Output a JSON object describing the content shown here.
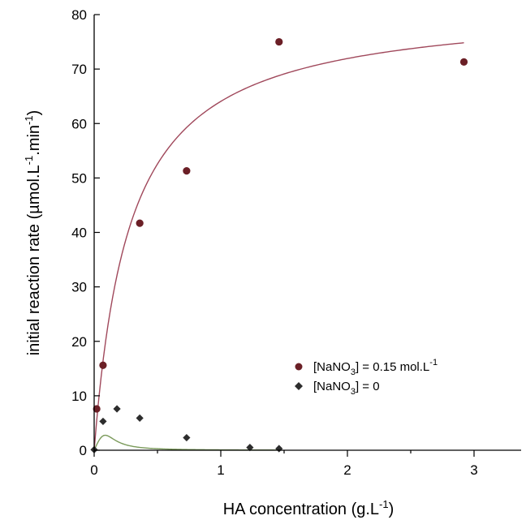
{
  "chart_data": {
    "type": "scatter",
    "title": "",
    "xlabel": {
      "text": "HA concentration (g.L",
      "sup": "-1",
      "tail": ")"
    },
    "ylabel": {
      "text": "initial reaction rate (µmol.L",
      "sup1": "-1",
      "mid": ".min",
      "sup2": "-1",
      "tail": ")"
    },
    "xlim": [
      0,
      3.3
    ],
    "ylim": [
      0,
      80
    ],
    "xticks": [
      0,
      1,
      2,
      3
    ],
    "yticks": [
      0,
      10,
      20,
      30,
      40,
      50,
      60,
      70,
      80
    ],
    "grid": false,
    "legend_position": "lower-right",
    "series": [
      {
        "name": {
          "pre": "[NaNO",
          "sub": "3",
          "post": "] = 0.15 mol.L",
          "sup": "-1"
        },
        "marker": "circle",
        "color": "#6b1f26",
        "points": [
          [
            0.02,
            7.6
          ],
          [
            0.07,
            15.6
          ],
          [
            0.36,
            41.7
          ],
          [
            0.73,
            51.3
          ],
          [
            1.46,
            75.0
          ],
          [
            2.92,
            71.3
          ]
        ],
        "fit": {
          "model": "saturation",
          "vmax": 82.0,
          "k": 0.28,
          "x_range": [
            0,
            2.92
          ],
          "color": "#a0485b"
        }
      },
      {
        "name": {
          "pre": "[NaNO",
          "sub": "3",
          "post": "] = 0",
          "sup": ""
        },
        "marker": "diamond",
        "color": "#2d2d2d",
        "points": [
          [
            0.0,
            0.1
          ],
          [
            0.07,
            5.3
          ],
          [
            0.18,
            7.6
          ],
          [
            0.36,
            5.9
          ],
          [
            0.73,
            2.3
          ],
          [
            1.23,
            0.5
          ],
          [
            1.46,
            0.3
          ]
        ],
        "fit": {
          "model": "substrate_inhibition",
          "vmax": 24.0,
          "km": 0.45,
          "ki": 0.11,
          "exp": 3,
          "x_range": [
            0,
            1.48
          ],
          "color": "#7a9a5a"
        }
      }
    ]
  }
}
